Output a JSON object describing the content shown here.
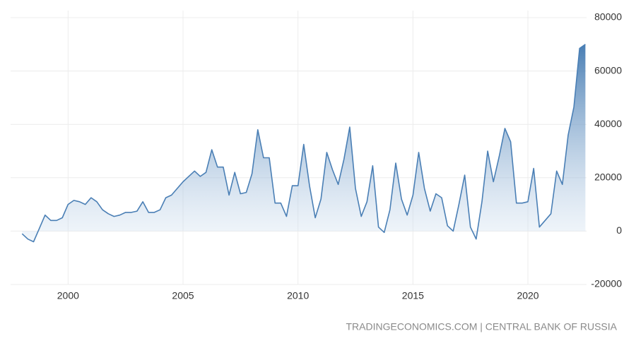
{
  "chart_data": {
    "type": "area",
    "source": "TRADINGECONOMICS.COM | CENTRAL BANK OF RUSSIA",
    "color": "#4a7fb5",
    "grid": true,
    "x": [
      1998.0,
      1998.25,
      1998.5,
      1998.75,
      1999.0,
      1999.25,
      1999.5,
      1999.75,
      2000.0,
      2000.25,
      2000.5,
      2000.75,
      2001.0,
      2001.25,
      2001.5,
      2001.75,
      2002.0,
      2002.25,
      2002.5,
      2002.75,
      2003.0,
      2003.25,
      2003.5,
      2003.75,
      2004.0,
      2004.25,
      2004.5,
      2004.75,
      2005.0,
      2005.25,
      2005.5,
      2005.75,
      2006.0,
      2006.25,
      2006.5,
      2006.75,
      2007.0,
      2007.25,
      2007.5,
      2007.75,
      2008.0,
      2008.25,
      2008.5,
      2008.75,
      2009.0,
      2009.25,
      2009.5,
      2009.75,
      2010.0,
      2010.25,
      2010.5,
      2010.75,
      2011.0,
      2011.25,
      2011.5,
      2011.75,
      2012.0,
      2012.25,
      2012.5,
      2012.75,
      2013.0,
      2013.25,
      2013.5,
      2013.75,
      2014.0,
      2014.25,
      2014.5,
      2014.75,
      2015.0,
      2015.25,
      2015.5,
      2015.75,
      2016.0,
      2016.25,
      2016.5,
      2016.75,
      2017.0,
      2017.25,
      2017.5,
      2017.75,
      2018.0,
      2018.25,
      2018.5,
      2018.75,
      2019.0,
      2019.25,
      2019.5,
      2019.75,
      2020.0,
      2020.25,
      2020.5,
      2020.75,
      2021.0,
      2021.25,
      2021.5,
      2021.75,
      2022.0,
      2022.25,
      2022.5
    ],
    "values": [
      -1000,
      -3000,
      -4000,
      1000,
      6000,
      4000,
      4000,
      5000,
      10000,
      11500,
      11000,
      10000,
      12500,
      11000,
      8000,
      6500,
      5500,
      6000,
      7000,
      7000,
      7500,
      11000,
      7000,
      7000,
      8000,
      12500,
      13500,
      16000,
      18500,
      20500,
      22500,
      20500,
      22000,
      30500,
      24000,
      24000,
      13500,
      22000,
      14000,
      14500,
      21500,
      38000,
      27500,
      27500,
      10500,
      10500,
      5500,
      17000,
      17000,
      32500,
      17000,
      5000,
      12000,
      29500,
      23000,
      17500,
      27000,
      39000,
      16000,
      5500,
      11000,
      24500,
      1500,
      -500,
      8000,
      25500,
      12000,
      6000,
      13500,
      29500,
      16000,
      7500,
      14000,
      12500,
      2000,
      0,
      10000,
      21000,
      1500,
      -3000,
      11000,
      30000,
      18500,
      28000,
      38500,
      33500,
      10500,
      10500,
      11000,
      23500,
      1500,
      4000,
      6500,
      22500,
      17500,
      36000,
      46500,
      68500,
      70000
    ],
    "xlim": [
      1997.5,
      2022.55
    ],
    "xticks": [
      2000,
      2005,
      2010,
      2015,
      2020
    ],
    "ylim": [
      -20000,
      80000
    ],
    "yticks": [
      -20000,
      0,
      20000,
      40000,
      60000,
      80000
    ]
  }
}
